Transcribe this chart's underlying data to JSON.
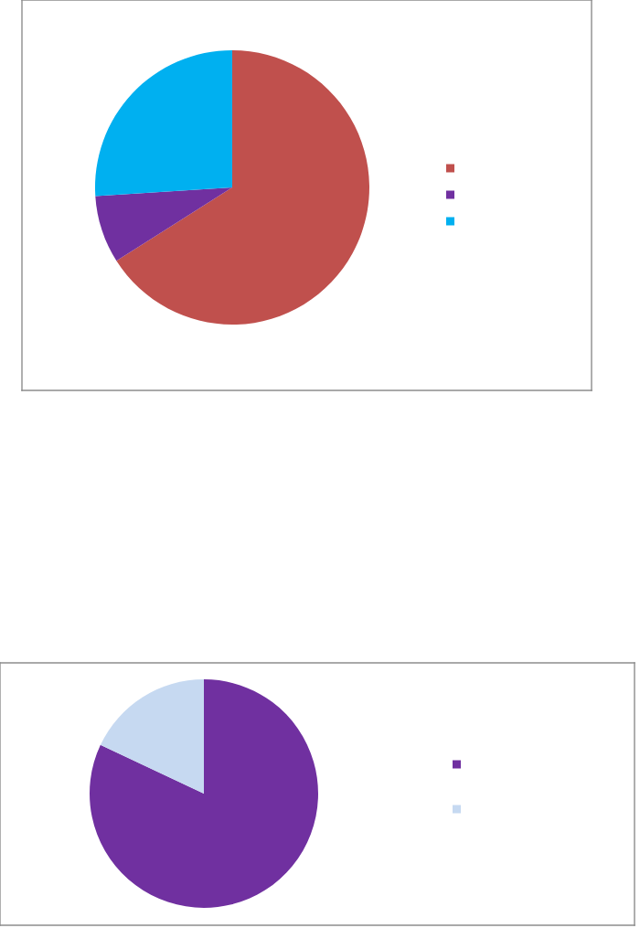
{
  "chart_data": [
    {
      "type": "pie",
      "categories": [
        null,
        null,
        null
      ],
      "values": [
        66,
        8,
        26
      ],
      "colors": [
        "#c0504d",
        "#7030a0",
        "#00b0f0"
      ]
    },
    {
      "type": "pie",
      "categories": [
        null,
        null
      ],
      "values": [
        82,
        18
      ],
      "colors": [
        "#7030a0",
        "#c6d9f1"
      ]
    }
  ]
}
